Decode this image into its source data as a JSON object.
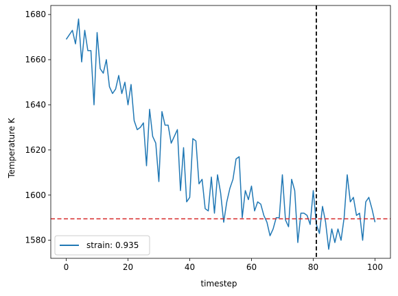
{
  "chart_data": {
    "type": "line",
    "title": "",
    "xlabel": "timestep",
    "ylabel": "Temperature K",
    "xlim": [
      -5,
      105
    ],
    "ylim": [
      1572,
      1684
    ],
    "xticks": [
      0,
      20,
      40,
      60,
      80,
      100
    ],
    "yticks": [
      1580,
      1600,
      1620,
      1640,
      1660,
      1680
    ],
    "grid": false,
    "legend_position": "lower left",
    "series": [
      {
        "name": "strain: 0.935",
        "color": "#1f77b4",
        "x": [
          0,
          1,
          2,
          3,
          4,
          5,
          6,
          7,
          8,
          9,
          10,
          11,
          12,
          13,
          14,
          15,
          16,
          17,
          18,
          19,
          20,
          21,
          22,
          23,
          24,
          25,
          26,
          27,
          28,
          29,
          30,
          31,
          32,
          33,
          34,
          35,
          36,
          37,
          38,
          39,
          40,
          41,
          42,
          43,
          44,
          45,
          46,
          47,
          48,
          49,
          50,
          51,
          52,
          53,
          54,
          55,
          56,
          57,
          58,
          59,
          60,
          61,
          62,
          63,
          64,
          65,
          66,
          67,
          68,
          69,
          70,
          71,
          72,
          73,
          74,
          75,
          76,
          77,
          78,
          79,
          80,
          81,
          82,
          83,
          84,
          85,
          86,
          87,
          88,
          89,
          90,
          91,
          92,
          93,
          94,
          95,
          96,
          97,
          98,
          99,
          100
        ],
        "values": [
          1669,
          1671,
          1673,
          1667,
          1678,
          1659,
          1673,
          1664,
          1664,
          1640,
          1672,
          1656,
          1654,
          1660,
          1648,
          1645,
          1647,
          1653,
          1645,
          1650,
          1640,
          1649,
          1633,
          1629,
          1630,
          1632,
          1613,
          1638,
          1626,
          1623,
          1606,
          1637,
          1631,
          1631,
          1623,
          1626,
          1629,
          1602,
          1621,
          1597,
          1599,
          1625,
          1624,
          1605,
          1607,
          1594,
          1593,
          1608,
          1592,
          1609,
          1601,
          1588,
          1597,
          1603,
          1607,
          1616,
          1617,
          1590,
          1602,
          1598,
          1604,
          1593,
          1597,
          1596,
          1591,
          1588,
          1582,
          1585,
          1590,
          1590,
          1609,
          1589,
          1586,
          1607,
          1602,
          1579,
          1592,
          1592,
          1591,
          1587,
          1602,
          1587,
          1583,
          1595,
          1588,
          1576,
          1585,
          1579,
          1585,
          1580,
          1590,
          1609,
          1597,
          1599,
          1591,
          1592,
          1580,
          1597,
          1599,
          1594,
          1588
        ]
      }
    ],
    "reference_lines": [
      {
        "orientation": "horizontal",
        "value": 1589.5,
        "color": "#d62728",
        "style": "dashed"
      },
      {
        "orientation": "vertical",
        "value": 81,
        "color": "#000000",
        "style": "dashed"
      }
    ]
  }
}
